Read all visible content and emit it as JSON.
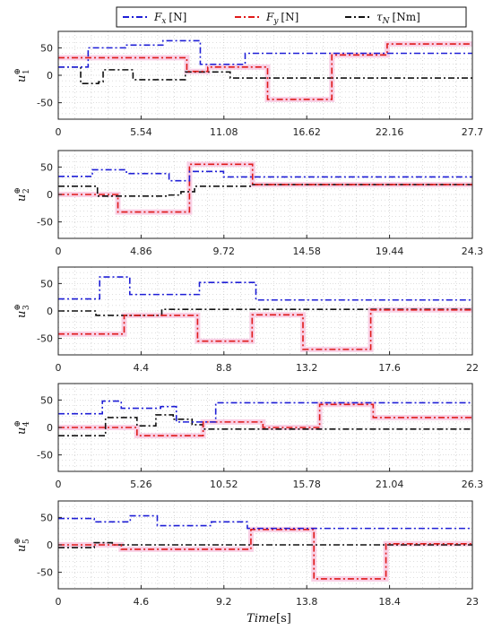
{
  "figure": {
    "xlabel_main": "Time",
    "xlabel_unit": "[s]"
  },
  "legend": {
    "entries": [
      {
        "sym": "F",
        "sub": "x",
        "unit": "[N]",
        "color": "#1f1fd6"
      },
      {
        "sym": "F",
        "sub": "y",
        "unit": "[N]",
        "color": "#e01a1a"
      },
      {
        "sym": "τ",
        "sub": "N",
        "unit": "[Nm]",
        "color": "#111111"
      }
    ]
  },
  "colors": {
    "fx": "#1f1fd6",
    "fy": "#e01a1a",
    "tau": "#111111",
    "band": "#f7c6e0",
    "grid": "#bdbdbd"
  },
  "chart_data": [
    {
      "type": "line",
      "ylabel": "u",
      "ylabel_sub": "1",
      "ylim": [
        -80,
        80
      ],
      "yticks": [
        -50,
        0,
        50
      ],
      "xlim": [
        0,
        27.7
      ],
      "xticks": [
        "0",
        "5.54",
        "11.08",
        "16.62",
        "22.16",
        "27.7"
      ],
      "grid": true,
      "series": [
        {
          "key": "fx",
          "x": [
            0,
            2,
            2,
            4.5,
            4.5,
            7,
            7,
            9.5,
            9.5,
            12.5,
            12.5,
            27.7
          ],
          "y": [
            15,
            15,
            50,
            50,
            55,
            55,
            63,
            63,
            20,
            20,
            40,
            40
          ]
        },
        {
          "key": "fy",
          "x": [
            0,
            5,
            5,
            8.6,
            8.6,
            10,
            10,
            14,
            14,
            18.3,
            18.3,
            22,
            22,
            27.7
          ],
          "y": [
            32,
            32,
            32,
            32,
            7,
            7,
            15,
            15,
            -44,
            -44,
            37,
            37,
            57,
            57
          ]
        },
        {
          "key": "tau",
          "x": [
            0,
            1.5,
            1.5,
            2.7,
            2.7,
            3,
            3,
            5,
            5,
            8.5,
            8.5,
            11.5,
            11.5,
            27.7
          ],
          "y": [
            15,
            15,
            -15,
            -15,
            -12,
            -12,
            10,
            10,
            -8,
            -8,
            6,
            6,
            -5,
            -5
          ]
        }
      ]
    },
    {
      "type": "line",
      "ylabel": "u",
      "ylabel_sub": "2",
      "ylim": [
        -80,
        80
      ],
      "yticks": [
        -50,
        0,
        50
      ],
      "xlim": [
        0,
        24.3
      ],
      "xticks": [
        "0",
        "4.86",
        "9.72",
        "14.58",
        "19.44",
        "24.3"
      ],
      "grid": true,
      "series": [
        {
          "key": "fx",
          "x": [
            0,
            2,
            2,
            4,
            4,
            6.5,
            6.5,
            7.7,
            7.7,
            9.7,
            9.7,
            24.3
          ],
          "y": [
            33,
            33,
            45,
            45,
            38,
            38,
            25,
            25,
            42,
            42,
            32,
            32
          ]
        },
        {
          "key": "fy",
          "x": [
            0,
            3.5,
            3.5,
            7,
            7,
            7.7,
            7.7,
            11.4,
            11.4,
            24.3
          ],
          "y": [
            0,
            0,
            -32,
            -32,
            -32,
            -32,
            55,
            55,
            18,
            18
          ]
        },
        {
          "key": "tau",
          "x": [
            0,
            2.3,
            2.3,
            6.5,
            6.5,
            7.2,
            7.2,
            8,
            8,
            11.4,
            11.4,
            24.3
          ],
          "y": [
            15,
            15,
            -3,
            -3,
            -1,
            -1,
            5,
            5,
            15,
            15,
            18,
            18
          ]
        }
      ]
    },
    {
      "type": "line",
      "ylabel": "u",
      "ylabel_sub": "3",
      "ylim": [
        -80,
        80
      ],
      "yticks": [
        -50,
        0,
        50
      ],
      "xlim": [
        0,
        22
      ],
      "xticks": [
        "0",
        "4.4",
        "8.8",
        "13.2",
        "17.6",
        "22"
      ],
      "grid": true,
      "series": [
        {
          "key": "fx",
          "x": [
            0,
            2.2,
            2.2,
            3.8,
            3.8,
            7.5,
            7.5,
            10.5,
            10.5,
            22
          ],
          "y": [
            22,
            22,
            62,
            62,
            30,
            30,
            52,
            52,
            20,
            20
          ]
        },
        {
          "key": "fy",
          "x": [
            0,
            3.5,
            3.5,
            7.4,
            7.4,
            10.3,
            10.3,
            13,
            13,
            16.6,
            16.6,
            22
          ],
          "y": [
            -42,
            -42,
            -8,
            -8,
            -55,
            -55,
            -7,
            -7,
            -70,
            -70,
            2,
            2
          ]
        },
        {
          "key": "tau",
          "x": [
            0,
            2,
            2,
            5.5,
            5.5,
            22
          ],
          "y": [
            0,
            0,
            -8,
            -8,
            3,
            3
          ]
        }
      ]
    },
    {
      "type": "line",
      "ylabel": "u",
      "ylabel_sub": "4",
      "ylim": [
        -80,
        80
      ],
      "yticks": [
        -50,
        0,
        50
      ],
      "xlim": [
        0,
        26.3
      ],
      "xticks": [
        "0",
        "5.26",
        "10.52",
        "15.78",
        "21.04",
        "26.3"
      ],
      "grid": true,
      "series": [
        {
          "key": "fx",
          "x": [
            0,
            2.8,
            2.8,
            4,
            4,
            6.5,
            6.5,
            7.5,
            7.5,
            10,
            10,
            26.3
          ],
          "y": [
            25,
            25,
            48,
            48,
            35,
            35,
            38,
            38,
            10,
            10,
            45,
            45
          ]
        },
        {
          "key": "fy",
          "x": [
            0,
            5,
            5,
            9.2,
            9.2,
            13,
            13,
            16.6,
            16.6,
            20,
            20,
            26.3
          ],
          "y": [
            0,
            0,
            -15,
            -15,
            10,
            10,
            0,
            0,
            42,
            42,
            18,
            18
          ]
        },
        {
          "key": "tau",
          "x": [
            0,
            3,
            3,
            5,
            5,
            6.2,
            6.2,
            7.3,
            7.3,
            8.5,
            8.5,
            9.2,
            9.2,
            26.3
          ],
          "y": [
            -15,
            -15,
            18,
            18,
            3,
            3,
            23,
            23,
            15,
            15,
            5,
            5,
            -3,
            -3
          ]
        }
      ]
    },
    {
      "type": "line",
      "ylabel": "u",
      "ylabel_sub": "5",
      "ylim": [
        -80,
        80
      ],
      "yticks": [
        -50,
        0,
        50
      ],
      "xlim": [
        0,
        23
      ],
      "xticks": [
        "0",
        "4.6",
        "9.2",
        "13.8",
        "18.4",
        "23"
      ],
      "grid": true,
      "series": [
        {
          "key": "fx",
          "x": [
            0,
            2,
            2,
            4,
            4,
            5.5,
            5.5,
            8.5,
            8.5,
            10.5,
            10.5,
            23
          ],
          "y": [
            48,
            48,
            42,
            42,
            53,
            53,
            35,
            35,
            42,
            42,
            30,
            30
          ]
        },
        {
          "key": "fy",
          "x": [
            0,
            3.5,
            3.5,
            10.7,
            10.7,
            14.2,
            14.2,
            18.2,
            18.2,
            23
          ],
          "y": [
            0,
            0,
            -8,
            -8,
            28,
            28,
            -62,
            -62,
            2,
            2
          ]
        },
        {
          "key": "tau",
          "x": [
            0,
            2,
            2,
            3,
            3,
            23
          ],
          "y": [
            -5,
            -5,
            4,
            4,
            0,
            0
          ]
        }
      ]
    }
  ]
}
